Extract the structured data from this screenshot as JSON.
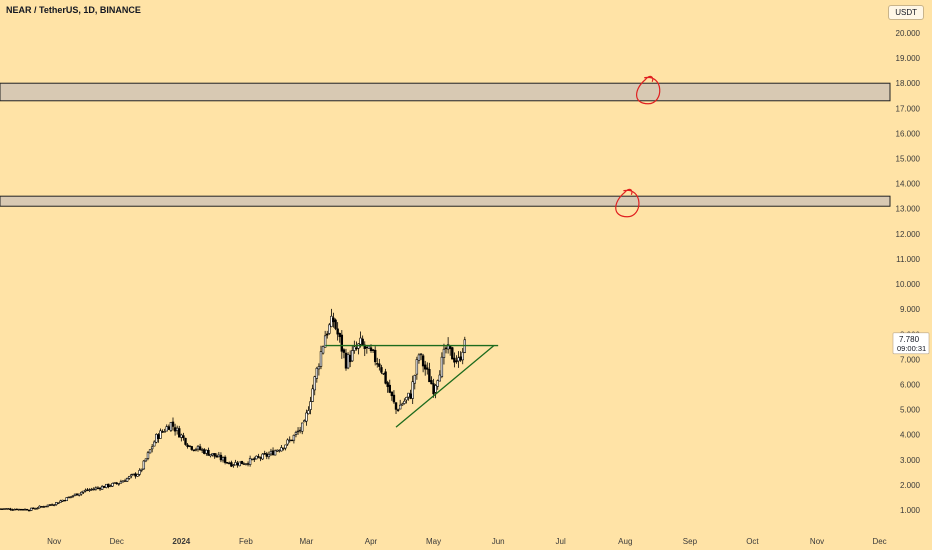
{
  "header": {
    "title": "NEAR / TetherUS, 1D, BINANCE",
    "currency": "USDT"
  },
  "price_label": {
    "price": "7.780",
    "countdown": "09:00:31"
  },
  "colors": {
    "background": "#ffe3a6",
    "candle": "#000000",
    "zone_fill": "#d8c9b3",
    "zone_border": "#222222",
    "trendline": "#1d6b1d",
    "annotation": "#e02020",
    "axis_text": "#3a3a3a",
    "price_label_bg": "#ffffff"
  },
  "chart_data": {
    "type": "candlestick",
    "title": "NEAR / TetherUS, 1D, BINANCE",
    "y_ticks": [
      {
        "value": 1,
        "label": "1.000"
      },
      {
        "value": 2,
        "label": "2.000"
      },
      {
        "value": 3,
        "label": "3.000"
      },
      {
        "value": 4,
        "label": "4.000"
      },
      {
        "value": 5,
        "label": "5.000"
      },
      {
        "value": 6,
        "label": "6.000"
      },
      {
        "value": 7,
        "label": "7.000"
      },
      {
        "value": 8,
        "label": "8.000"
      },
      {
        "value": 9,
        "label": "9.000"
      },
      {
        "value": 10,
        "label": "10.000"
      },
      {
        "value": 11,
        "label": "11.000"
      },
      {
        "value": 12,
        "label": "12.000"
      },
      {
        "value": 13,
        "label": "13.000"
      },
      {
        "value": 14,
        "label": "14.000"
      },
      {
        "value": 15,
        "label": "15.000"
      },
      {
        "value": 16,
        "label": "16.000"
      },
      {
        "value": 17,
        "label": "17.000"
      },
      {
        "value": 18,
        "label": "18.000"
      },
      {
        "value": 19,
        "label": "19.000"
      },
      {
        "value": 20,
        "label": "20.000"
      }
    ],
    "x_ticks": [
      {
        "label": "Nov",
        "date": "2023-11-01"
      },
      {
        "label": "Dec",
        "date": "2023-12-01"
      },
      {
        "label": "2024",
        "date": "2024-01-01"
      },
      {
        "label": "Feb",
        "date": "2024-02-01"
      },
      {
        "label": "Mar",
        "date": "2024-03-01"
      },
      {
        "label": "Apr",
        "date": "2024-04-01"
      },
      {
        "label": "May",
        "date": "2024-05-01"
      },
      {
        "label": "Jun",
        "date": "2024-06-01"
      },
      {
        "label": "Jul",
        "date": "2024-07-01"
      },
      {
        "label": "Aug",
        "date": "2024-08-01"
      },
      {
        "label": "Sep",
        "date": "2024-09-01"
      },
      {
        "label": "Oct",
        "date": "2024-10-01"
      },
      {
        "label": "Nov",
        "date": "2024-11-01"
      },
      {
        "label": "Dec",
        "date": "2024-12-01"
      }
    ],
    "x_range": [
      "2023-10-06",
      "2024-12-06"
    ],
    "ylim": [
      0.2,
      21.3
    ],
    "grid": false,
    "price_path": [
      {
        "date": "2023-10-06",
        "close": 1.05
      },
      {
        "date": "2023-10-20",
        "close": 1.02
      },
      {
        "date": "2023-11-01",
        "close": 1.25
      },
      {
        "date": "2023-11-15",
        "close": 1.75
      },
      {
        "date": "2023-12-01",
        "close": 2.05
      },
      {
        "date": "2023-12-12",
        "close": 2.5
      },
      {
        "date": "2023-12-20",
        "close": 3.9
      },
      {
        "date": "2023-12-27",
        "close": 4.45
      },
      {
        "date": "2024-01-05",
        "close": 3.55
      },
      {
        "date": "2024-01-12",
        "close": 3.35
      },
      {
        "date": "2024-01-25",
        "close": 2.85
      },
      {
        "date": "2024-02-01",
        "close": 2.9
      },
      {
        "date": "2024-02-12",
        "close": 3.2
      },
      {
        "date": "2024-02-22",
        "close": 3.75
      },
      {
        "date": "2024-02-29",
        "close": 4.4
      },
      {
        "date": "2024-03-05",
        "close": 6.2
      },
      {
        "date": "2024-03-10",
        "close": 8.0
      },
      {
        "date": "2024-03-14",
        "close": 8.55
      },
      {
        "date": "2024-03-20",
        "close": 6.9
      },
      {
        "date": "2024-03-27",
        "close": 7.6
      },
      {
        "date": "2024-04-05",
        "close": 6.85
      },
      {
        "date": "2024-04-13",
        "close": 5.0
      },
      {
        "date": "2024-04-20",
        "close": 5.6
      },
      {
        "date": "2024-04-24",
        "close": 7.2
      },
      {
        "date": "2024-05-01",
        "close": 5.85
      },
      {
        "date": "2024-05-07",
        "close": 7.4
      },
      {
        "date": "2024-05-13",
        "close": 6.9
      },
      {
        "date": "2024-05-16",
        "close": 7.78
      }
    ],
    "resistance_zones": [
      {
        "low": 17.3,
        "high": 18.0
      },
      {
        "low": 13.1,
        "high": 13.5
      }
    ],
    "trendlines": [
      {
        "kind": "horizontal-resistance",
        "x1": "2024-03-10",
        "y1": 7.55,
        "x2": "2024-06-01",
        "y2": 7.55
      },
      {
        "kind": "rising-support",
        "x1": "2024-04-13",
        "y1": 4.3,
        "x2": "2024-05-30",
        "y2": 7.55
      }
    ],
    "annotations": [
      {
        "type": "circle",
        "date": "2024-08-12",
        "price": 17.7
      },
      {
        "type": "circle",
        "date": "2024-08-02",
        "price": 13.2
      }
    ],
    "last_price": 7.78
  }
}
